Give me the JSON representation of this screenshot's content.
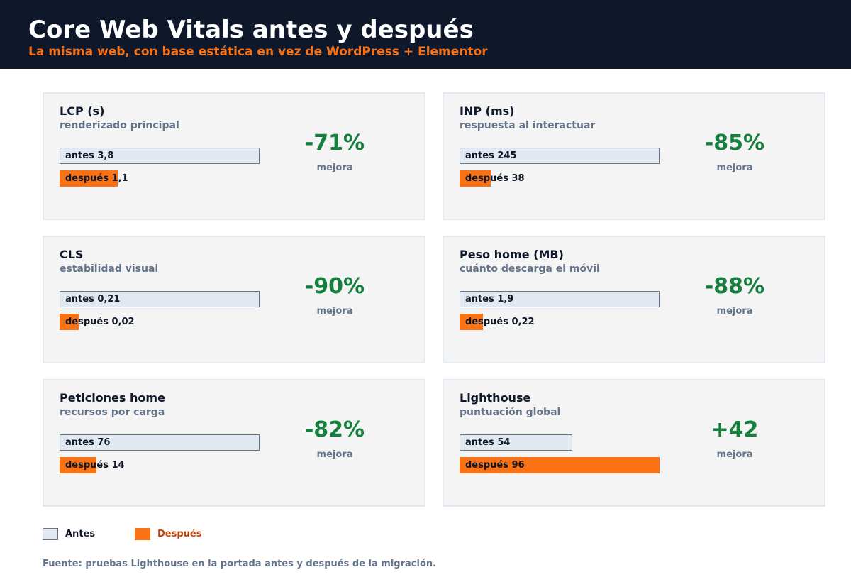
{
  "header": {
    "title": "Core Web Vitals antes y después",
    "subtitle": "La misma web, con base estática en vez de WordPress + Elementor"
  },
  "colors": {
    "header_bg": "#0f172a",
    "accent": "#f97316",
    "before_bar": "#e2e8f0",
    "after_bar": "#f97316",
    "improvement": "#15803d"
  },
  "legend": {
    "before_label": "Antes",
    "after_label": "Después"
  },
  "source": "Fuente: pruebas Lighthouse en la portada antes y después de la migración.",
  "chart_data": {
    "type": "bar",
    "orientation": "horizontal",
    "series": [
      {
        "name": "Antes"
      },
      {
        "name": "Después"
      }
    ],
    "legend_position": "bottom-left",
    "panels": [
      {
        "title": "LCP (s)",
        "subtitle": "renderizado principal",
        "before": 3.8,
        "after": 1.1,
        "before_label": "antes 3,8",
        "after_label": "después 1,1",
        "delta": "-71%",
        "delta_label": "mejora"
      },
      {
        "title": "INP (ms)",
        "subtitle": "respuesta al interactuar",
        "before": 245,
        "after": 38,
        "before_label": "antes 245",
        "after_label": "después 38",
        "delta": "-85%",
        "delta_label": "mejora"
      },
      {
        "title": "CLS",
        "subtitle": "estabilidad visual",
        "before": 0.21,
        "after": 0.02,
        "before_label": "antes 0,21",
        "after_label": "después 0,02",
        "delta": "-90%",
        "delta_label": "mejora"
      },
      {
        "title": "Peso home (MB)",
        "subtitle": "cuánto descarga el móvil",
        "before": 1.9,
        "after": 0.22,
        "before_label": "antes 1,9",
        "after_label": "después 0,22",
        "delta": "-88%",
        "delta_label": "mejora"
      },
      {
        "title": "Peticiones home",
        "subtitle": "recursos por carga",
        "before": 76,
        "after": 14,
        "before_label": "antes 76",
        "after_label": "después 14",
        "delta": "-82%",
        "delta_label": "mejora"
      },
      {
        "title": "Lighthouse",
        "subtitle": "puntuación global",
        "before": 54,
        "after": 96,
        "before_label": "antes 54",
        "after_label": "después 96",
        "delta": "+42",
        "delta_label": "mejora"
      }
    ]
  }
}
